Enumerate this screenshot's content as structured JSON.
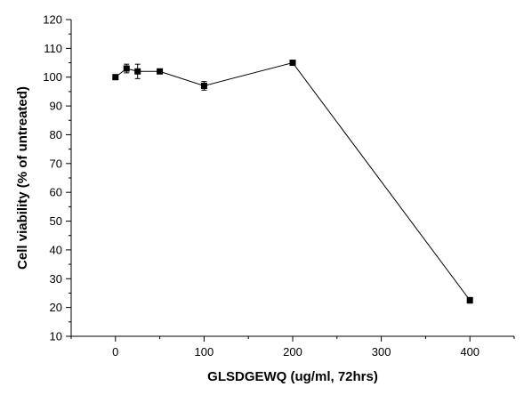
{
  "chart_data": {
    "type": "line",
    "title": "",
    "xlabel": "GLSDGEWQ (ug/ml, 72hrs)",
    "ylabel": "Cell viability (% of untreated)",
    "xlim": [
      -50,
      450
    ],
    "ylim": [
      10,
      120
    ],
    "x_ticks": [
      "0",
      "100",
      "200",
      "300",
      "400"
    ],
    "y_ticks": [
      "10",
      "20",
      "30",
      "40",
      "50",
      "60",
      "70",
      "80",
      "90",
      "100",
      "110",
      "120"
    ],
    "grid": false,
    "series": [
      {
        "marker": "square",
        "color": "#000000",
        "x": [
          0,
          12.5,
          25,
          50,
          100,
          200,
          400
        ],
        "y": [
          100,
          103,
          102,
          102,
          97,
          105,
          22.5
        ],
        "error": [
          0,
          1.5,
          2.5,
          0.5,
          1.5,
          0.5,
          1.0
        ]
      }
    ]
  }
}
